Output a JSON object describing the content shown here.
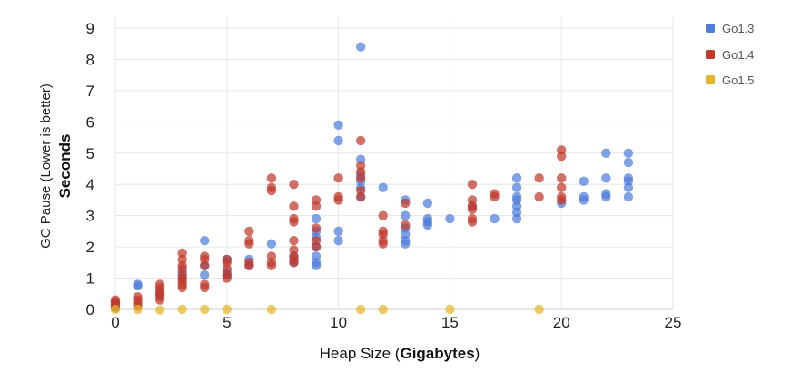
{
  "chart_data": {
    "type": "scatter",
    "xlabel": {
      "prefix": "Heap Size (",
      "bold": "Gigabytes",
      "suffix": ")"
    },
    "ylabel": {
      "line1": "GC Pause (Lower is better)",
      "line2": "Seconds"
    },
    "xlim": [
      0,
      25
    ],
    "ylim": [
      0,
      9
    ],
    "xticks": [
      0,
      5,
      10,
      15,
      20,
      25
    ],
    "yticks": [
      0,
      1,
      2,
      3,
      4,
      5,
      6,
      7,
      8,
      9
    ],
    "grid": true,
    "legend_position": "right",
    "series": [
      {
        "name": "Go1.3",
        "color": "#4e7ddb",
        "points": [
          [
            0,
            0.2
          ],
          [
            0,
            0.1
          ],
          [
            1,
            0.8
          ],
          [
            1,
            0.75
          ],
          [
            2,
            0.5
          ],
          [
            3,
            1.0
          ],
          [
            3,
            1.2
          ],
          [
            4,
            2.2
          ],
          [
            4,
            1.1
          ],
          [
            4,
            1.4
          ],
          [
            5,
            1.6
          ],
          [
            5,
            1.2
          ],
          [
            5,
            1.1
          ],
          [
            6,
            1.6
          ],
          [
            6,
            1.4
          ],
          [
            7,
            2.1
          ],
          [
            8,
            1.7
          ],
          [
            8,
            1.5
          ],
          [
            9,
            2.9
          ],
          [
            9,
            2.5
          ],
          [
            9,
            2.3
          ],
          [
            9,
            2.0
          ],
          [
            9,
            1.7
          ],
          [
            9,
            1.5
          ],
          [
            9,
            1.4
          ],
          [
            10,
            5.9
          ],
          [
            10,
            5.4
          ],
          [
            10,
            2.5
          ],
          [
            10,
            2.2
          ],
          [
            11,
            8.4
          ],
          [
            11,
            4.8
          ],
          [
            11,
            4.3
          ],
          [
            11,
            4.1
          ],
          [
            11,
            3.9
          ],
          [
            11,
            3.6
          ],
          [
            12,
            3.9
          ],
          [
            13,
            3.5
          ],
          [
            13,
            3.0
          ],
          [
            13,
            2.6
          ],
          [
            13,
            2.4
          ],
          [
            13,
            2.2
          ],
          [
            13,
            2.1
          ],
          [
            14,
            3.4
          ],
          [
            14,
            2.9
          ],
          [
            14,
            2.8
          ],
          [
            14,
            2.7
          ],
          [
            15,
            2.9
          ],
          [
            16,
            3.3
          ],
          [
            17,
            2.9
          ],
          [
            18,
            4.2
          ],
          [
            18,
            3.9
          ],
          [
            18,
            3.6
          ],
          [
            18,
            3.5
          ],
          [
            18,
            3.3
          ],
          [
            18,
            3.1
          ],
          [
            18,
            2.9
          ],
          [
            20,
            3.4
          ],
          [
            21,
            4.1
          ],
          [
            21,
            3.6
          ],
          [
            21,
            3.5
          ],
          [
            22,
            5.0
          ],
          [
            22,
            4.2
          ],
          [
            22,
            3.7
          ],
          [
            22,
            3.6
          ],
          [
            23,
            5.0
          ],
          [
            23,
            4.7
          ],
          [
            23,
            4.2
          ],
          [
            23,
            4.1
          ],
          [
            23,
            3.9
          ],
          [
            23,
            3.6
          ]
        ]
      },
      {
        "name": "Go1.4",
        "color": "#c0392b",
        "points": [
          [
            0,
            0.3
          ],
          [
            0,
            0.25
          ],
          [
            0,
            0.15
          ],
          [
            0,
            0.05
          ],
          [
            1,
            0.4
          ],
          [
            1,
            0.3
          ],
          [
            1,
            0.2
          ],
          [
            1,
            0.1
          ],
          [
            2,
            0.8
          ],
          [
            2,
            0.7
          ],
          [
            2,
            0.6
          ],
          [
            2,
            0.5
          ],
          [
            2,
            0.4
          ],
          [
            2,
            0.3
          ],
          [
            3,
            1.8
          ],
          [
            3,
            1.6
          ],
          [
            3,
            1.4
          ],
          [
            3,
            1.3
          ],
          [
            3,
            1.1
          ],
          [
            3,
            1.0
          ],
          [
            3,
            0.9
          ],
          [
            3,
            0.8
          ],
          [
            3,
            0.7
          ],
          [
            4,
            1.7
          ],
          [
            4,
            1.6
          ],
          [
            4,
            1.4
          ],
          [
            4,
            0.8
          ],
          [
            4,
            0.7
          ],
          [
            5,
            1.6
          ],
          [
            5,
            1.5
          ],
          [
            5,
            1.3
          ],
          [
            5,
            1.1
          ],
          [
            5,
            1.0
          ],
          [
            6,
            2.5
          ],
          [
            6,
            2.2
          ],
          [
            6,
            2.1
          ],
          [
            6,
            1.5
          ],
          [
            6,
            1.4
          ],
          [
            7,
            4.2
          ],
          [
            7,
            3.9
          ],
          [
            7,
            3.8
          ],
          [
            7,
            1.7
          ],
          [
            7,
            1.5
          ],
          [
            7,
            1.4
          ],
          [
            8,
            4.0
          ],
          [
            8,
            3.3
          ],
          [
            8,
            2.9
          ],
          [
            8,
            2.8
          ],
          [
            8,
            2.2
          ],
          [
            8,
            1.9
          ],
          [
            8,
            1.7
          ],
          [
            8,
            1.6
          ],
          [
            8,
            1.5
          ],
          [
            9,
            3.5
          ],
          [
            9,
            3.3
          ],
          [
            9,
            2.6
          ],
          [
            9,
            2.2
          ],
          [
            9,
            2.0
          ],
          [
            10,
            4.2
          ],
          [
            10,
            3.6
          ],
          [
            10,
            3.5
          ],
          [
            11,
            5.4
          ],
          [
            11,
            4.6
          ],
          [
            11,
            4.4
          ],
          [
            11,
            4.2
          ],
          [
            11,
            3.8
          ],
          [
            11,
            3.6
          ],
          [
            12,
            3.0
          ],
          [
            12,
            2.5
          ],
          [
            12,
            2.4
          ],
          [
            12,
            2.2
          ],
          [
            12,
            2.1
          ],
          [
            13,
            3.4
          ],
          [
            13,
            2.7
          ],
          [
            16,
            4.0
          ],
          [
            16,
            3.5
          ],
          [
            16,
            3.3
          ],
          [
            16,
            3.2
          ],
          [
            16,
            2.9
          ],
          [
            16,
            2.8
          ],
          [
            17,
            3.7
          ],
          [
            17,
            3.6
          ],
          [
            19,
            4.2
          ],
          [
            19,
            3.6
          ],
          [
            20,
            5.1
          ],
          [
            20,
            4.9
          ],
          [
            20,
            4.2
          ],
          [
            20,
            3.9
          ],
          [
            20,
            3.6
          ],
          [
            20,
            3.5
          ]
        ]
      },
      {
        "name": "Go1.5",
        "color": "#e6b526",
        "points": [
          [
            0,
            0.0
          ],
          [
            1,
            0.0
          ],
          [
            2,
            -0.02
          ],
          [
            3,
            0.0
          ],
          [
            4,
            0.0
          ],
          [
            5,
            0.0
          ],
          [
            7,
            0.0
          ],
          [
            11,
            0.0
          ],
          [
            12,
            0.0
          ],
          [
            15,
            0.0
          ],
          [
            19,
            0.0
          ]
        ]
      }
    ]
  }
}
